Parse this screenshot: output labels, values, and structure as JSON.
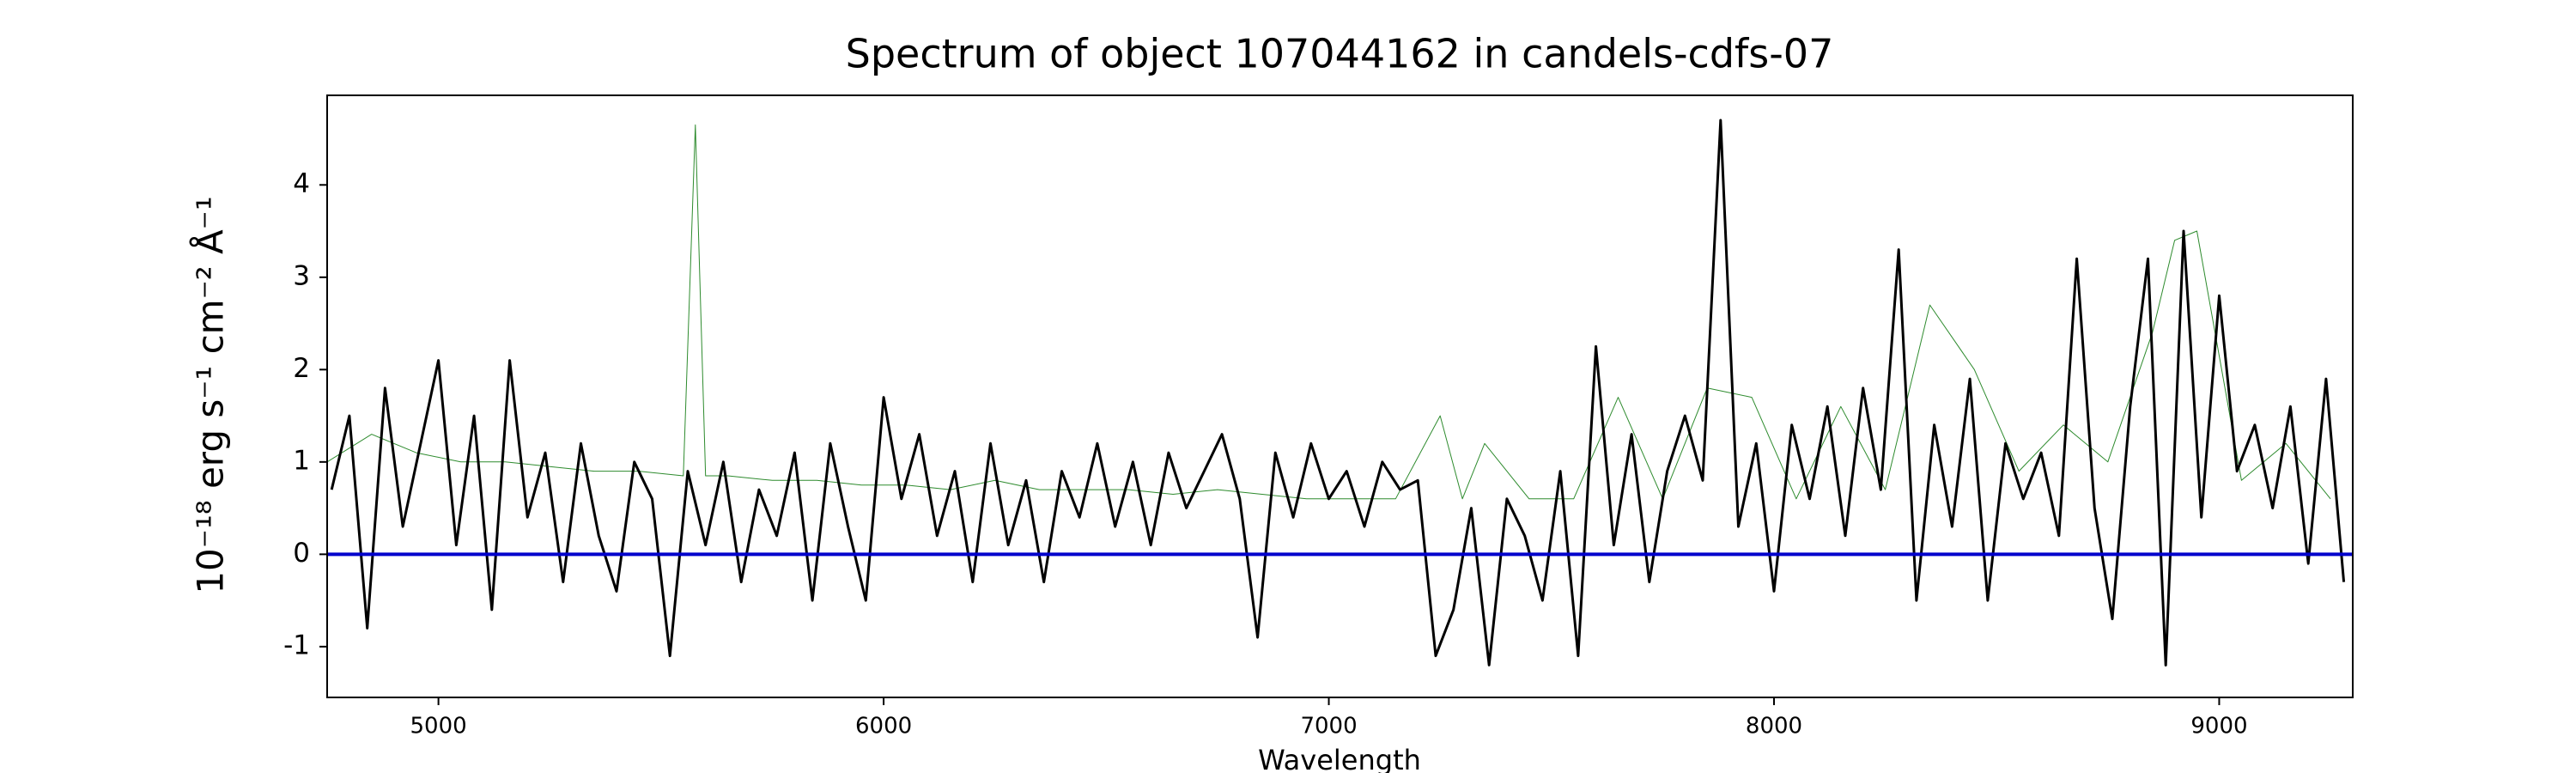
{
  "chart_data": {
    "type": "line",
    "title": "Spectrum of object 107044162 in candels-cdfs-07",
    "xlabel": "Wavelength",
    "ylabel": "10⁻¹⁸ erg s⁻¹ cm⁻² Å⁻¹",
    "xlim": [
      4750,
      9300
    ],
    "ylim": [
      -1.55,
      4.97
    ],
    "xticks": [
      5000,
      6000,
      7000,
      8000,
      9000
    ],
    "yticks": [
      -1,
      0,
      1,
      2,
      3,
      4
    ],
    "series": [
      {
        "color": "#2e8b2e",
        "width": 1,
        "x": [
          4750,
          4850,
          4950,
          5050,
          5150,
          5250,
          5350,
          5450,
          5550,
          5577,
          5600,
          5650,
          5750,
          5850,
          5950,
          6050,
          6150,
          6250,
          6350,
          6450,
          6550,
          6650,
          6750,
          6850,
          6950,
          7050,
          7150,
          7250,
          7300,
          7350,
          7450,
          7550,
          7650,
          7750,
          7850,
          7950,
          8050,
          8150,
          8250,
          8350,
          8450,
          8550,
          8650,
          8750,
          8850,
          8900,
          8950,
          9050,
          9150,
          9250
        ],
        "values": [
          1.0,
          1.3,
          1.1,
          1.0,
          1.0,
          0.95,
          0.9,
          0.9,
          0.85,
          4.65,
          0.85,
          0.85,
          0.8,
          0.8,
          0.75,
          0.75,
          0.7,
          0.8,
          0.7,
          0.7,
          0.7,
          0.65,
          0.7,
          0.65,
          0.6,
          0.6,
          0.6,
          1.5,
          0.6,
          1.2,
          0.6,
          0.6,
          1.7,
          0.6,
          1.8,
          1.7,
          0.6,
          1.6,
          0.7,
          2.7,
          2.0,
          0.9,
          1.4,
          1.0,
          2.4,
          3.4,
          3.5,
          0.8,
          1.2,
          0.6
        ]
      },
      {
        "color": "#000000",
        "width": 3,
        "x": [
          4760,
          4800,
          4840,
          4880,
          4920,
          4960,
          5000,
          5040,
          5080,
          5120,
          5160,
          5200,
          5240,
          5280,
          5320,
          5360,
          5400,
          5440,
          5480,
          5520,
          5560,
          5600,
          5640,
          5680,
          5720,
          5760,
          5800,
          5840,
          5880,
          5920,
          5960,
          6000,
          6040,
          6080,
          6120,
          6160,
          6200,
          6240,
          6280,
          6320,
          6360,
          6400,
          6440,
          6480,
          6520,
          6560,
          6600,
          6640,
          6680,
          6720,
          6760,
          6800,
          6840,
          6880,
          6920,
          6960,
          7000,
          7040,
          7080,
          7120,
          7160,
          7200,
          7240,
          7280,
          7320,
          7360,
          7400,
          7440,
          7480,
          7520,
          7560,
          7600,
          7640,
          7680,
          7720,
          7760,
          7800,
          7840,
          7880,
          7920,
          7960,
          8000,
          8040,
          8080,
          8120,
          8160,
          8200,
          8240,
          8280,
          8320,
          8360,
          8400,
          8440,
          8480,
          8520,
          8560,
          8600,
          8640,
          8680,
          8720,
          8760,
          8800,
          8840,
          8880,
          8920,
          8960,
          9000,
          9040,
          9080,
          9120,
          9160,
          9200,
          9240,
          9280
        ],
        "values": [
          0.7,
          1.5,
          -0.8,
          1.8,
          0.3,
          1.2,
          2.1,
          0.1,
          1.5,
          -0.6,
          2.1,
          0.4,
          1.1,
          -0.3,
          1.2,
          0.2,
          -0.4,
          1.0,
          0.6,
          -1.1,
          0.9,
          0.1,
          1.0,
          -0.3,
          0.7,
          0.2,
          1.1,
          -0.5,
          1.2,
          0.3,
          -0.5,
          1.7,
          0.6,
          1.3,
          0.2,
          0.9,
          -0.3,
          1.2,
          0.1,
          0.8,
          -0.3,
          0.9,
          0.4,
          1.2,
          0.3,
          1.0,
          0.1,
          1.1,
          0.5,
          0.9,
          1.3,
          0.6,
          -0.9,
          1.1,
          0.4,
          1.2,
          0.6,
          0.9,
          0.3,
          1.0,
          0.7,
          0.8,
          -1.1,
          -0.6,
          0.5,
          -1.2,
          0.6,
          0.2,
          -0.5,
          0.9,
          -1.1,
          2.25,
          0.1,
          1.3,
          -0.3,
          0.9,
          1.5,
          0.8,
          4.7,
          0.3,
          1.2,
          -0.4,
          1.4,
          0.6,
          1.6,
          0.2,
          1.8,
          0.7,
          3.3,
          -0.5,
          1.4,
          0.3,
          1.9,
          -0.5,
          1.2,
          0.6,
          1.1,
          0.2,
          3.2,
          0.5,
          -0.7,
          1.6,
          3.2,
          -1.2,
          3.5,
          0.4,
          2.8,
          0.9,
          1.4,
          0.5,
          1.6,
          -0.1,
          1.9,
          -0.3
        ]
      },
      {
        "color": "#0000cc",
        "width": 4,
        "x": [
          4750,
          9300
        ],
        "values": [
          0,
          0
        ]
      }
    ]
  }
}
